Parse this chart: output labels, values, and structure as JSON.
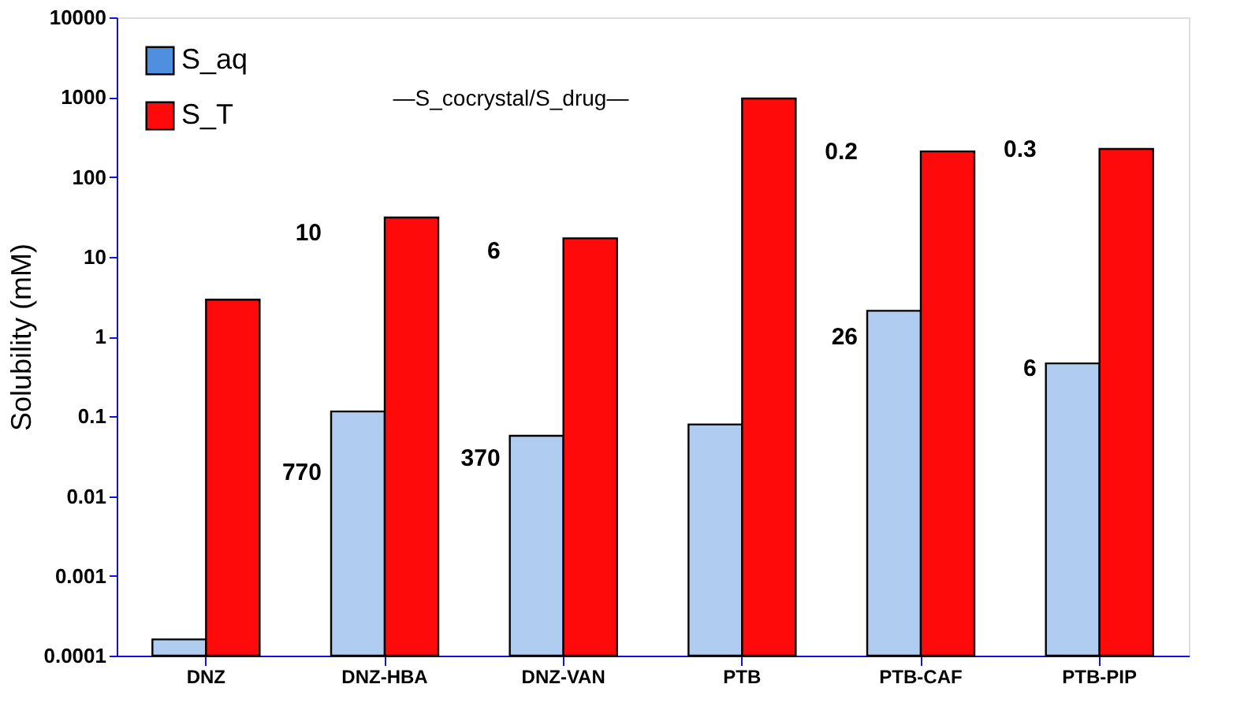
{
  "chart_data": {
    "type": "bar",
    "ylabel": "Solubility (mM)",
    "categories": [
      "DNZ",
      "DNZ-HBA",
      "DNZ-VAN",
      "PTB",
      "PTB-CAF",
      "PTB-PIP"
    ],
    "series": [
      {
        "name": "S_aq",
        "color": "#4f8fdf",
        "values": [
          0.00016,
          0.115,
          0.057,
          0.079,
          2.1,
          0.46
        ]
      },
      {
        "name": "S_T",
        "color": "#ff0a0a",
        "values": [
          2.9,
          31,
          17,
          960,
          209,
          224
        ]
      }
    ],
    "log": true,
    "ylim": [
      0.0001,
      10000
    ],
    "yticks": [
      0.0001,
      0.001,
      0.01,
      0.1,
      1,
      10,
      100,
      1000,
      10000
    ],
    "grid": false,
    "legend": "top left",
    "annotations": [
      "—S_cocrystal/S_drug—",
      {
        "text": "770",
        "x": "DNZ-HBA",
        "y": 0.02
      },
      {
        "text": "370",
        "x": "DNZ-VAN",
        "y": 0.03
      },
      {
        "text": "10",
        "x": "DNZ-HBA",
        "y": 20
      },
      {
        "text": "6",
        "x": "DNZ-VAN",
        "y": 12
      },
      {
        "text": "26",
        "x": "PTB-CAF",
        "y": 1
      },
      {
        "text": "6",
        "x": "PTB-PIP",
        "y": 0.4
      },
      {
        "text": "0.2",
        "x": "PTB-CAF",
        "y": 209
      },
      {
        "text": "0.3",
        "x": "PTB-PIP",
        "y": 224
      }
    ]
  }
}
